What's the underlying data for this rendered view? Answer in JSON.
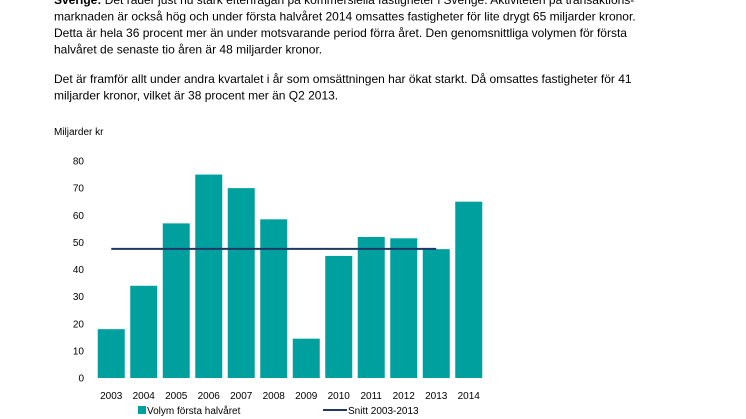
{
  "paragraphs": [
    {
      "lead": "Sverige:",
      "lines": [
        "Det råder just nu stark efterfrågan på kommersiella fastigheter i Sverige. Aktiviteten på transaktions-",
        "marknaden är också hög och under första halvåret 2014 omsattes fastigheter för lite drygt 65 miljarder kronor.",
        "Detta är hela 36 procent mer än under motsvarande period förra året. Den genomsnittliga volymen för första",
        "halvåret de senaste tio åren är 48 miljarder kronor."
      ]
    },
    {
      "lines": [
        "Det är framför allt under andra kvartalet i år som omsättningen har ökat starkt. Då omsattes fastigheter för 41",
        "miljarder kronor, vilket är 38 procent mer än Q2 2013."
      ]
    }
  ],
  "chart_data": {
    "type": "bar",
    "y_label": "Miljarder kr",
    "categories": [
      "2003",
      "2004",
      "2005",
      "2006",
      "2007",
      "2008",
      "2009",
      "2010",
      "2011",
      "2012",
      "2013",
      "2014"
    ],
    "series": [
      {
        "name": "Volym första halvåret",
        "type": "bar",
        "color": "#00a09f",
        "values": [
          18,
          34,
          57,
          75,
          70,
          58.5,
          14.5,
          45,
          52,
          51.5,
          47.5,
          65
        ]
      },
      {
        "name": "Snitt 2003-2013",
        "type": "line",
        "color": "#1f3864",
        "values": [
          47.6,
          47.6,
          47.6,
          47.6,
          47.6,
          47.6,
          47.6,
          47.6,
          47.6,
          47.6,
          47.6,
          null
        ]
      }
    ],
    "ylim": [
      0,
      80
    ],
    "yticks": [
      0,
      10,
      20,
      30,
      40,
      50,
      60,
      70,
      80
    ],
    "grid": false,
    "legend": "bottom"
  }
}
